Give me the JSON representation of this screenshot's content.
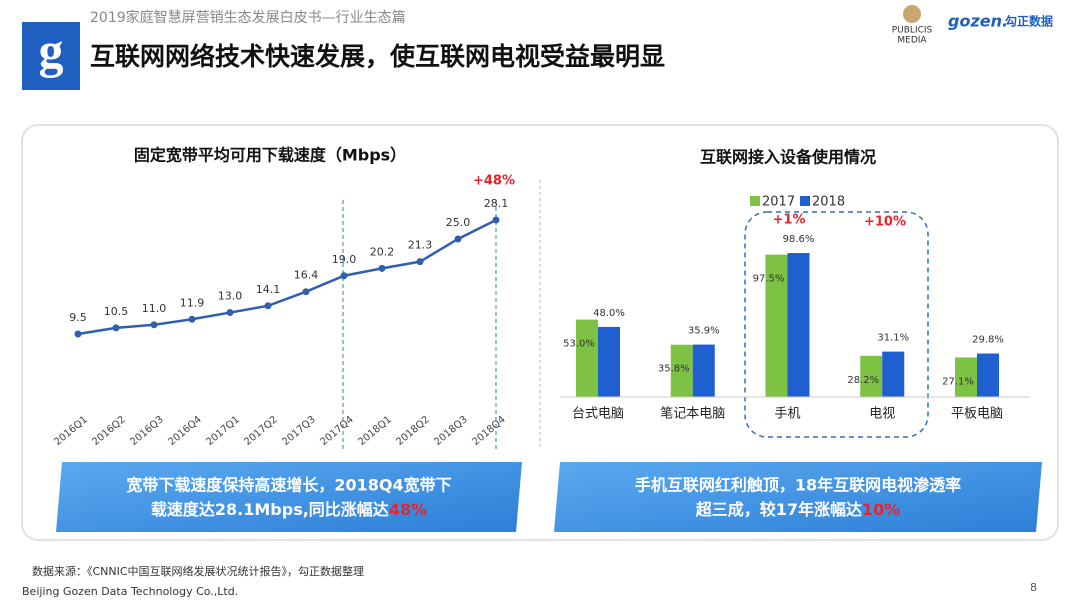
{
  "header": {
    "subtitle": "2019家庭智慧屏营销生态发展白皮书—行业生态篇",
    "title": "互联网网络技术快速发展，使互联网电视受益最明显",
    "logo_left": "g",
    "logo_publicis": [
      "PUBLICIS",
      "MEDIA"
    ],
    "logo_gozen": [
      "gozen.",
      "勾正数据"
    ]
  },
  "chart_data": [
    {
      "type": "line",
      "title": "固定宽带平均可用下载速度（Mbps）",
      "categories": [
        "2016Q1",
        "2016Q2",
        "2016Q3",
        "2016Q4",
        "2017Q1",
        "2017Q2",
        "2017Q3",
        "2017Q4",
        "2018Q1",
        "2018Q2",
        "2018Q3",
        "2018Q4"
      ],
      "values": [
        9.5,
        10.5,
        11.0,
        11.9,
        13.0,
        14.1,
        16.4,
        19.0,
        20.2,
        21.3,
        25.0,
        28.1
      ],
      "value_labels": [
        "9.5",
        "10.5",
        "11.0",
        "11.9",
        "13.0",
        "14.1",
        "16.4",
        "19.0",
        "20.2",
        "21.3",
        "25.0",
        "28.1"
      ],
      "color": "#2f5fae",
      "annotation": "+48%"
    },
    {
      "type": "bar",
      "title": "互联网接入设备使用情况",
      "categories": [
        "台式电脑",
        "笔记本电脑",
        "手机",
        "电视",
        "平板电脑"
      ],
      "series": [
        {
          "name": "2017",
          "color": "#7dc242",
          "values": [
            53.0,
            35.8,
            97.5,
            28.2,
            27.1
          ],
          "value_labels": [
            "53.0%",
            "35.8%",
            "97.5%",
            "28.2%",
            "27.1%"
          ]
        },
        {
          "name": "2018",
          "color": "#1f5fd0",
          "values": [
            48.0,
            35.9,
            98.6,
            31.1,
            29.8
          ],
          "value_labels": [
            "48.0%",
            "35.9%",
            "98.6%",
            "31.1%",
            "29.8%"
          ]
        }
      ],
      "annotations": [
        "+1%",
        "+10%"
      ]
    }
  ],
  "callouts": [
    {
      "line1": "宽带下载速度保持高速增长，2018Q4宽带下",
      "line2": "载速度达28.1Mbps,同比涨幅达",
      "highlight": "48%"
    },
    {
      "line1": "手机互联网红利触顶，18年互联网电视渗透率",
      "line2": "超三成，较17年涨幅达",
      "highlight": "10%"
    }
  ],
  "footer": {
    "source": "数据来源：《CNNIC中国互联网络发展状况统计报告》，勾正数据整理",
    "company": "Beijing Gozen Data Technology Co.,Ltd.",
    "page": "8"
  }
}
